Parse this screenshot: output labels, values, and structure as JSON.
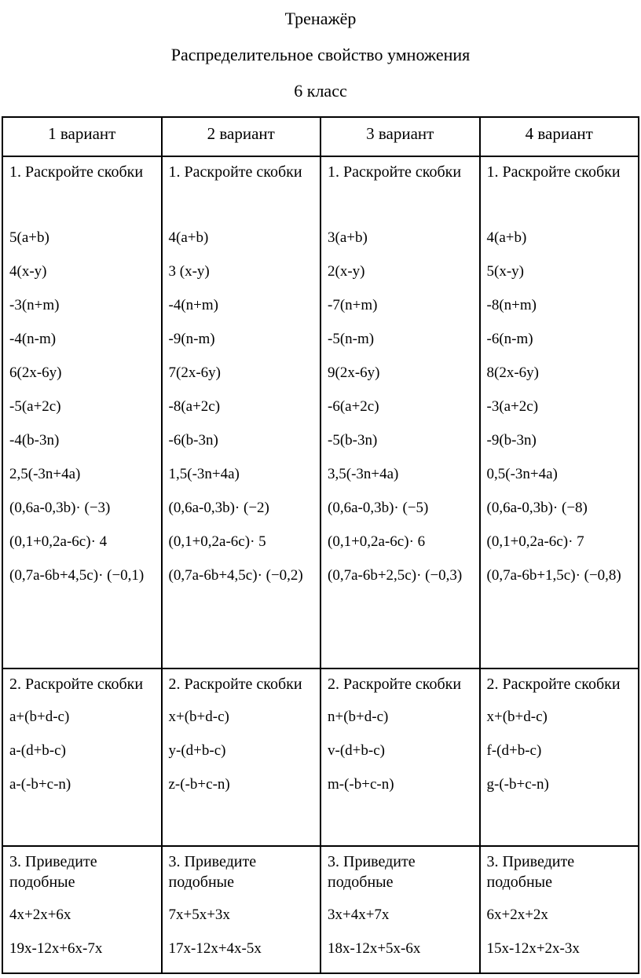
{
  "title": {
    "line1": "Тренажёр",
    "line2": "Распределительное свойство умножения",
    "line3": "6 класс"
  },
  "table": {
    "headers": [
      "1 вариант",
      "2 вариант",
      "3 вариант",
      "4 вариант"
    ],
    "task1_label": "1. Раскройте скобки",
    "task2_label": "2. Раскройте скобки",
    "task3_label": "3. Приведите подобные",
    "columns": [
      {
        "task1": [
          "5(a+b)",
          "4(x-y)",
          "-3(n+m)",
          "-4(n-m)",
          "6(2x-6y)",
          "-5(a+2c)",
          "-4(b-3n)",
          "2,5(-3n+4a)",
          "(0,6a-0,3b)· (−3)",
          "(0,1+0,2a-6c)· 4",
          "(0,7a-6b+4,5c)· (−0,1)"
        ],
        "task2": [
          "a+(b+d-c)",
          "a-(d+b-c)",
          "a-(-b+c-n)"
        ],
        "task3": [
          "4x+2x+6x",
          "19x-12x+6x-7x"
        ]
      },
      {
        "task1": [
          "4(a+b)",
          "3 (x-y)",
          "-4(n+m)",
          "-9(n-m)",
          "7(2x-6y)",
          "-8(a+2c)",
          "-6(b-3n)",
          "1,5(-3n+4a)",
          "(0,6a-0,3b)· (−2)",
          "(0,1+0,2a-6c)· 5",
          "(0,7a-6b+4,5c)· (−0,2)"
        ],
        "task2": [
          "x+(b+d-c)",
          "y-(d+b-c)",
          "z-(-b+c-n)"
        ],
        "task3": [
          "7x+5x+3x",
          "17x-12x+4x-5x"
        ]
      },
      {
        "task1": [
          "3(a+b)",
          "2(x-y)",
          "-7(n+m)",
          "-5(n-m)",
          "9(2x-6y)",
          "-6(a+2c)",
          "-5(b-3n)",
          "3,5(-3n+4a)",
          "(0,6a-0,3b)· (−5)",
          "(0,1+0,2a-6c)· 6",
          "(0,7a-6b+2,5c)· (−0,3)"
        ],
        "task2": [
          "n+(b+d-c)",
          "v-(d+b-c)",
          "m-(-b+c-n)"
        ],
        "task3": [
          "3x+4x+7x",
          "18x-12x+5x-6x"
        ]
      },
      {
        "task1": [
          "4(a+b)",
          "5(x-y)",
          "-8(n+m)",
          "-6(n-m)",
          "8(2x-6y)",
          "-3(a+2c)",
          "-9(b-3n)",
          "0,5(-3n+4a)",
          "(0,6a-0,3b)· (−8)",
          "(0,1+0,2a-6c)· 7",
          "(0,7a-6b+1,5c)· (−0,8)"
        ],
        "task2": [
          "x+(b+d-c)",
          "f-(d+b-c)",
          "g-(-b+c-n)"
        ],
        "task3": [
          "6x+2x+2x",
          "15x-12x+2x-3x"
        ]
      }
    ]
  },
  "colors": {
    "text": "#000000",
    "border": "#000000",
    "background": "#ffffff"
  }
}
